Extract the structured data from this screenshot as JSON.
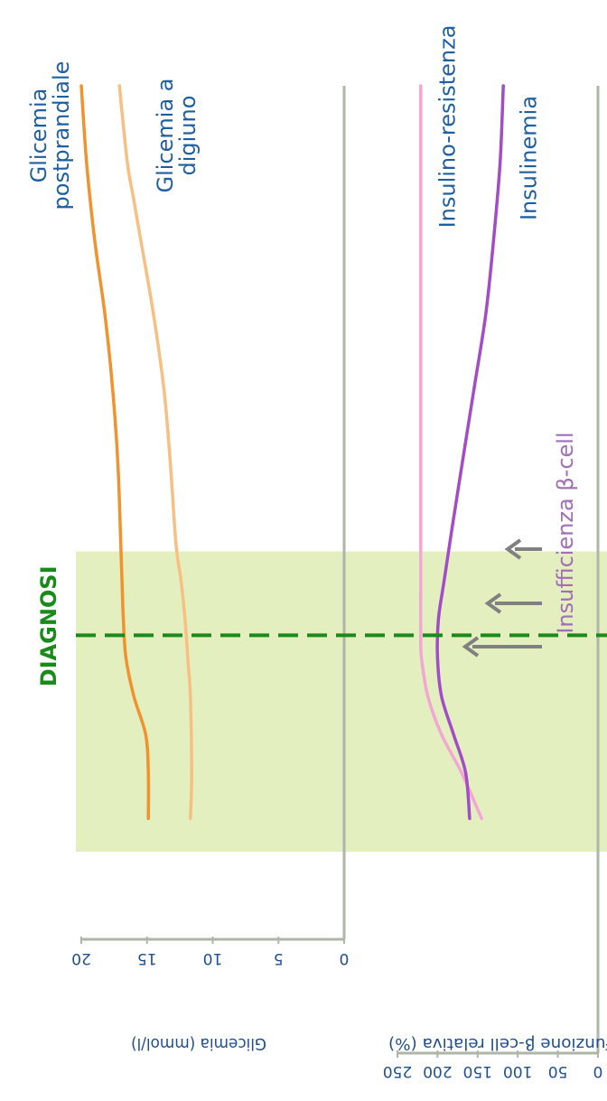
{
  "chart_data": [
    {
      "type": "line",
      "title": "",
      "ylabel": "Glicemia (mmol/l)",
      "xlabel": "",
      "ylim": [
        0,
        20
      ],
      "y_ticks": [
        0,
        5,
        10,
        15,
        20
      ],
      "x_range": [
        0,
        1
      ],
      "grid": false,
      "series": [
        {
          "name": "Glicemia postprandiale",
          "color": "#f0922e",
          "x": [
            0.04,
            0.1,
            0.15,
            0.2,
            0.25,
            0.3,
            0.35,
            0.4,
            0.5,
            0.6,
            0.7,
            0.8,
            0.9,
            1.0
          ],
          "y": [
            14.9,
            14.9,
            15.1,
            16.0,
            16.6,
            16.8,
            16.9,
            17.0,
            17.2,
            17.6,
            18.2,
            19.0,
            19.6,
            20.0
          ]
        },
        {
          "name": "Glicemia a digiuno",
          "color": "#f8bf82",
          "x": [
            0.04,
            0.1,
            0.2,
            0.25,
            0.3,
            0.35,
            0.4,
            0.5,
            0.6,
            0.7,
            0.8,
            0.85,
            0.9,
            1.0
          ],
          "y": [
            11.7,
            11.6,
            11.7,
            11.9,
            12.1,
            12.4,
            12.8,
            13.2,
            13.7,
            14.5,
            15.5,
            16.0,
            16.5,
            17.1
          ]
        }
      ]
    },
    {
      "type": "line",
      "title": "",
      "ylabel": "Funzione β-cell relativa (%)",
      "xlabel": "",
      "ylim": [
        0,
        250
      ],
      "y_ticks": [
        0,
        50,
        100,
        150,
        200,
        250
      ],
      "x_range": [
        0,
        1
      ],
      "grid": false,
      "series": [
        {
          "name": "Insulino-resistenza",
          "color": "#f2a7d4",
          "x": [
            0.04,
            0.1,
            0.15,
            0.2,
            0.25,
            0.28,
            0.35,
            0.45,
            0.6,
            0.8,
            1.0
          ],
          "y": [
            145,
            170,
            195,
            212,
            220,
            221,
            221,
            221,
            221,
            221,
            221
          ]
        },
        {
          "name": "Insulinemia",
          "color": "#a24cc7",
          "x": [
            0.04,
            0.1,
            0.15,
            0.2,
            0.25,
            0.3,
            0.35,
            0.42,
            0.5,
            0.6,
            0.7,
            0.8,
            0.9,
            1.0
          ],
          "y": [
            160,
            165,
            180,
            195,
            200,
            199,
            192,
            182,
            170,
            155,
            140,
            130,
            122,
            118
          ]
        }
      ]
    }
  ],
  "diagnosis": {
    "label": "DIAGNOSI",
    "x": 0.28,
    "band": [
      0.0,
      0.39
    ],
    "line_color": "#1a8a1a",
    "band_color": "#e4efc0"
  },
  "insufficiency": {
    "label": "Insufficienza β-cell",
    "label_color": "#a06fb4",
    "arrow_color": "#808080",
    "arrow_count": 3
  },
  "colors": {
    "axis": "#aeb6a8",
    "axis_text": "#1f4f8f"
  }
}
